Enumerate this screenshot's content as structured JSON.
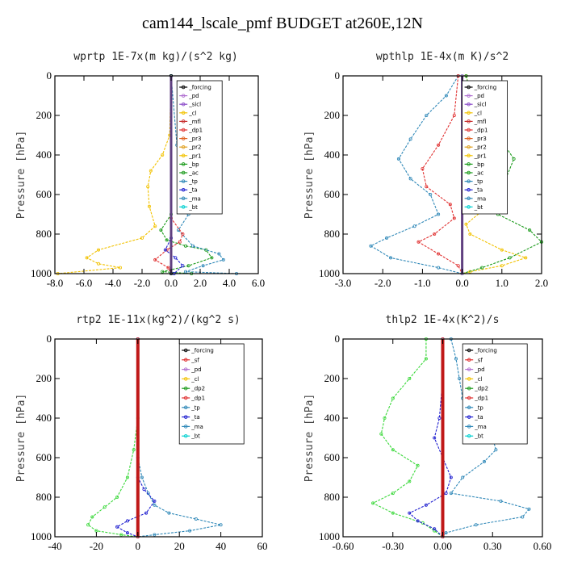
{
  "title": "cam144_lscale_pmf  BUDGET at260E,12N",
  "chart_data": [
    {
      "type": "line",
      "title": "wprtp   1E-7x(m kg)/(s^2 kg)",
      "ylabel": "Pressure [hPa]",
      "xlim": [
        -8,
        6
      ],
      "ylim": [
        1000,
        0
      ],
      "xticks": [
        "-8.0",
        "-6.0",
        "-4.0",
        "-2.0",
        "0.0",
        "2.0",
        "4.0",
        "6.0"
      ],
      "xtick_values": [
        -8,
        -6,
        -4,
        -2,
        0,
        2,
        4,
        6
      ],
      "yticks": [
        "0",
        "200",
        "400",
        "600",
        "800",
        "1000"
      ],
      "ytick_values": [
        0,
        200,
        400,
        600,
        800,
        1000
      ],
      "legend": [
        "_forcing",
        "_pd",
        "_sicl",
        "_cl",
        "_mfl",
        "_dp1",
        "_pr3",
        "_pr2",
        "_pr1",
        "_bp",
        "_ac",
        "_tp",
        "_ta",
        "_ma",
        "_bt"
      ],
      "series": [
        {
          "name": "_pr1",
          "color": "#f2c200",
          "points": [
            [
              0,
              0
            ],
            [
              -0.1,
              300
            ],
            [
              -0.6,
              400
            ],
            [
              -1.4,
              480
            ],
            [
              -1.6,
              560
            ],
            [
              -1.5,
              660
            ],
            [
              -1.1,
              760
            ],
            [
              -2.0,
              820
            ],
            [
              -5.0,
              880
            ],
            [
              -5.8,
              920
            ],
            [
              -5.0,
              950
            ],
            [
              -3.5,
              970
            ],
            [
              -7.8,
              1000
            ]
          ]
        },
        {
          "name": "_ac",
          "color": "#1a9a1a",
          "points": [
            [
              0,
              0
            ],
            [
              0,
              700
            ],
            [
              -0.7,
              780
            ],
            [
              -0.3,
              830
            ],
            [
              1.0,
              860
            ],
            [
              2.4,
              880
            ],
            [
              2.8,
              920
            ],
            [
              1.2,
              960
            ],
            [
              -0.6,
              990
            ],
            [
              1.4,
              1000
            ]
          ]
        },
        {
          "name": "_tp",
          "color": "#2f88b8",
          "points": [
            [
              0,
              0
            ],
            [
              0.4,
              350
            ],
            [
              1.3,
              420
            ],
            [
              2.6,
              480
            ],
            [
              3.0,
              540
            ],
            [
              2.6,
              620
            ],
            [
              1.2,
              700
            ],
            [
              0.5,
              780
            ],
            [
              1.5,
              860
            ],
            [
              3.3,
              900
            ],
            [
              3.6,
              930
            ],
            [
              2.2,
              960
            ],
            [
              1.0,
              990
            ],
            [
              4.5,
              1000
            ]
          ]
        },
        {
          "name": "_dp1",
          "color": "#e03030",
          "points": [
            [
              0,
              0
            ],
            [
              0,
              720
            ],
            [
              0.8,
              800
            ],
            [
              0.6,
              840
            ],
            [
              -0.3,
              880
            ],
            [
              -1.1,
              930
            ],
            [
              -0.2,
              970
            ],
            [
              0,
              1000
            ]
          ]
        },
        {
          "name": "_ta",
          "color": "#2020d0",
          "points": [
            [
              0,
              0
            ],
            [
              0,
              820
            ],
            [
              -0.4,
              880
            ],
            [
              0.3,
              920
            ],
            [
              0.8,
              960
            ],
            [
              0.2,
              1000
            ]
          ]
        },
        {
          "name": "_bt",
          "color": "#00d0d0",
          "points": [
            [
              0,
              0
            ],
            [
              0,
              1000
            ]
          ]
        },
        {
          "name": "_forcing",
          "color": "#000000",
          "points": [
            [
              0,
              0
            ],
            [
              0,
              1000
            ]
          ]
        }
      ]
    },
    {
      "type": "line",
      "title": "wpthlp   1E-4x(m K)/s^2",
      "ylabel": "Pressure [hPa]",
      "xlim": [
        -3,
        2
      ],
      "ylim": [
        1000,
        0
      ],
      "xticks": [
        "-3.0",
        "-2.0",
        "-1.0",
        "0.0",
        "1.0",
        "2.0"
      ],
      "xtick_values": [
        -3,
        -2,
        -1,
        0,
        1,
        2
      ],
      "yticks": [
        "0",
        "200",
        "400",
        "600",
        "800",
        "1000"
      ],
      "ytick_values": [
        0,
        200,
        400,
        600,
        800,
        1000
      ],
      "legend": [
        "_forcing",
        "_pd",
        "_sicl",
        "_cl",
        "_mfl",
        "_dp1",
        "_pr3",
        "_pr2",
        "_pr1",
        "_bp",
        "_ac",
        "_tp",
        "_ta",
        "_ma",
        "_bt"
      ],
      "series": [
        {
          "name": "_tp",
          "color": "#2f88b8",
          "points": [
            [
              -0.1,
              0
            ],
            [
              -0.4,
              100
            ],
            [
              -0.9,
              200
            ],
            [
              -1.3,
              320
            ],
            [
              -1.6,
              420
            ],
            [
              -1.3,
              520
            ],
            [
              -0.8,
              600
            ],
            [
              -0.6,
              700
            ],
            [
              -1.2,
              760
            ],
            [
              -1.9,
              820
            ],
            [
              -2.3,
              860
            ],
            [
              -1.8,
              920
            ],
            [
              -0.6,
              970
            ],
            [
              0,
              1000
            ]
          ]
        },
        {
          "name": "_dp1",
          "color": "#e03030",
          "points": [
            [
              -0.1,
              0
            ],
            [
              -0.2,
              200
            ],
            [
              -0.6,
              350
            ],
            [
              -1.0,
              470
            ],
            [
              -0.9,
              560
            ],
            [
              -0.3,
              650
            ],
            [
              -0.2,
              720
            ],
            [
              -0.7,
              800
            ],
            [
              -1.1,
              840
            ],
            [
              -0.6,
              900
            ],
            [
              -0.1,
              960
            ],
            [
              0,
              1000
            ]
          ]
        },
        {
          "name": "_pr1",
          "color": "#f2c200",
          "points": [
            [
              0.1,
              0
            ],
            [
              0.3,
              150
            ],
            [
              0.5,
              300
            ],
            [
              0.8,
              450
            ],
            [
              1.0,
              550
            ],
            [
              0.7,
              650
            ],
            [
              0.1,
              750
            ],
            [
              0.2,
              800
            ],
            [
              1.0,
              880
            ],
            [
              1.6,
              920
            ],
            [
              1.0,
              960
            ],
            [
              0.2,
              990
            ],
            [
              0,
              1000
            ]
          ]
        },
        {
          "name": "_ac",
          "color": "#1a9a1a",
          "points": [
            [
              0.1,
              0
            ],
            [
              0.3,
              150
            ],
            [
              0.9,
              300
            ],
            [
              1.3,
              420
            ],
            [
              1.1,
              520
            ],
            [
              0.7,
              600
            ],
            [
              0.9,
              700
            ],
            [
              1.7,
              780
            ],
            [
              2.0,
              840
            ],
            [
              1.2,
              920
            ],
            [
              0.5,
              970
            ],
            [
              0,
              1000
            ]
          ]
        },
        {
          "name": "_bt",
          "color": "#00d0d0",
          "points": [
            [
              0,
              0
            ],
            [
              0,
              1000
            ]
          ]
        },
        {
          "name": "_forcing",
          "color": "#b070d0",
          "points": [
            [
              0,
              0
            ],
            [
              0,
              1000
            ]
          ]
        }
      ]
    },
    {
      "type": "line",
      "title": "rtp2   1E-11x(kg^2)/(kg^2 s)",
      "ylabel": "Pressure [hPa]",
      "xlim": [
        -40,
        60
      ],
      "ylim": [
        1000,
        0
      ],
      "xticks": [
        "-40",
        "-20",
        "0",
        "20",
        "40",
        "60"
      ],
      "xtick_values": [
        -40,
        -20,
        0,
        20,
        40,
        60
      ],
      "yticks": [
        "0",
        "200",
        "400",
        "600",
        "800",
        "1000"
      ],
      "ytick_values": [
        0,
        200,
        400,
        600,
        800,
        1000
      ],
      "legend": [
        "_forcing",
        "_sf",
        "_pd",
        "_cl",
        "_dp2",
        "_dp1",
        "_tp",
        "_ta",
        "_ma",
        "_bt"
      ],
      "series": [
        {
          "name": "_dp1",
          "color": "#3ad83a",
          "points": [
            [
              0,
              0
            ],
            [
              0,
              400
            ],
            [
              -2,
              560
            ],
            [
              -5,
              700
            ],
            [
              -10,
              800
            ],
            [
              -16,
              850
            ],
            [
              -22,
              900
            ],
            [
              -24,
              940
            ],
            [
              -20,
              970
            ],
            [
              -8,
              990
            ],
            [
              0,
              1000
            ]
          ]
        },
        {
          "name": "_tp",
          "color": "#2f88b8",
          "points": [
            [
              0,
              0
            ],
            [
              0,
              600
            ],
            [
              2,
              700
            ],
            [
              5,
              780
            ],
            [
              8,
              840
            ],
            [
              15,
              880
            ],
            [
              28,
              910
            ],
            [
              40,
              940
            ],
            [
              25,
              970
            ],
            [
              8,
              990
            ],
            [
              0,
              1000
            ]
          ]
        },
        {
          "name": "_ta",
          "color": "#2020d0",
          "points": [
            [
              0,
              0
            ],
            [
              0,
              700
            ],
            [
              3,
              760
            ],
            [
              8,
              820
            ],
            [
              4,
              880
            ],
            [
              -5,
              920
            ],
            [
              -10,
              950
            ],
            [
              -5,
              980
            ],
            [
              0,
              1000
            ]
          ]
        },
        {
          "name": "_forcing",
          "color": "#e03030",
          "points": [
            [
              0,
              0
            ],
            [
              0,
              1000
            ]
          ]
        }
      ]
    },
    {
      "type": "line",
      "title": "thlp2   1E-4x(K^2)/s",
      "ylabel": "Pressure [hPa]",
      "xlim": [
        -0.6,
        0.6
      ],
      "ylim": [
        1000,
        0
      ],
      "xticks": [
        "-0.60",
        "-0.30",
        "0.00",
        "0.30",
        "0.60"
      ],
      "xtick_values": [
        -0.6,
        -0.3,
        0,
        0.3,
        0.6
      ],
      "yticks": [
        "0",
        "200",
        "400",
        "600",
        "800",
        "1000"
      ],
      "ytick_values": [
        0,
        200,
        400,
        600,
        800,
        1000
      ],
      "legend": [
        "_forcing",
        "_sf",
        "_pd",
        "_cl",
        "_dp2",
        "_dp1",
        "_tp",
        "_ta",
        "_ma",
        "_bt"
      ],
      "series": [
        {
          "name": "_dp1",
          "color": "#3ad83a",
          "points": [
            [
              -0.1,
              0
            ],
            [
              -0.1,
              100
            ],
            [
              -0.2,
              200
            ],
            [
              -0.3,
              300
            ],
            [
              -0.35,
              400
            ],
            [
              -0.37,
              480
            ],
            [
              -0.3,
              560
            ],
            [
              -0.15,
              640
            ],
            [
              -0.2,
              720
            ],
            [
              -0.3,
              780
            ],
            [
              -0.42,
              830
            ],
            [
              -0.3,
              880
            ],
            [
              -0.12,
              930
            ],
            [
              -0.05,
              970
            ],
            [
              0,
              1000
            ]
          ]
        },
        {
          "name": "_tp",
          "color": "#2f88b8",
          "points": [
            [
              0.05,
              0
            ],
            [
              0.08,
              100
            ],
            [
              0.1,
              200
            ],
            [
              0.12,
              300
            ],
            [
              0.2,
              400
            ],
            [
              0.3,
              500
            ],
            [
              0.32,
              560
            ],
            [
              0.25,
              620
            ],
            [
              0.12,
              700
            ],
            [
              0.05,
              780
            ],
            [
              0.35,
              820
            ],
            [
              0.52,
              860
            ],
            [
              0.48,
              900
            ],
            [
              0.2,
              940
            ],
            [
              0.02,
              980
            ],
            [
              0,
              1000
            ]
          ]
        },
        {
          "name": "_ta",
          "color": "#2020d0",
          "points": [
            [
              0,
              0
            ],
            [
              0,
              200
            ],
            [
              -0.02,
              400
            ],
            [
              -0.05,
              500
            ],
            [
              0,
              600
            ],
            [
              0.05,
              700
            ],
            [
              0.02,
              780
            ],
            [
              -0.1,
              840
            ],
            [
              -0.2,
              880
            ],
            [
              -0.15,
              920
            ],
            [
              -0.05,
              960
            ],
            [
              0,
              1000
            ]
          ]
        },
        {
          "name": "_forcing",
          "color": "#e03030",
          "points": [
            [
              0,
              0
            ],
            [
              0,
              1000
            ]
          ]
        }
      ]
    }
  ]
}
